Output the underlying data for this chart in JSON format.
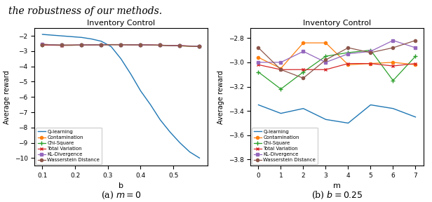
{
  "title": "Inventory Control",
  "ylabel": "Average reward",
  "top_text": "the robustness of our methods.",
  "plot1": {
    "xlabel": "b",
    "caption": "(a) $m=0$",
    "b_values": [
      0.1,
      0.13,
      0.16,
      0.19,
      0.22,
      0.25,
      0.28,
      0.31,
      0.34,
      0.37,
      0.4,
      0.43,
      0.46,
      0.49,
      0.52,
      0.55,
      0.58
    ],
    "q_learning": [
      -1.9,
      -1.95,
      -2.0,
      -2.05,
      -2.1,
      -2.2,
      -2.35,
      -2.7,
      -3.5,
      -4.5,
      -5.6,
      -6.5,
      -7.5,
      -8.3,
      -9.0,
      -9.6,
      -10.0
    ],
    "contamination": [
      -2.55,
      -2.58,
      -2.6,
      -2.6,
      -2.6,
      -2.58,
      -2.57,
      -2.57,
      -2.57,
      -2.58,
      -2.58,
      -2.6,
      -2.61,
      -2.63,
      -2.65,
      -2.67,
      -2.68
    ],
    "chi_square": [
      -2.58,
      -2.6,
      -2.61,
      -2.61,
      -2.6,
      -2.59,
      -2.58,
      -2.57,
      -2.57,
      -2.58,
      -2.58,
      -2.6,
      -2.61,
      -2.63,
      -2.65,
      -2.67,
      -2.68
    ],
    "total_variation": [
      -2.6,
      -2.61,
      -2.62,
      -2.61,
      -2.6,
      -2.59,
      -2.58,
      -2.57,
      -2.57,
      -2.58,
      -2.58,
      -2.59,
      -2.61,
      -2.62,
      -2.64,
      -2.66,
      -2.67
    ],
    "kl_divergence": [
      -2.55,
      -2.58,
      -2.6,
      -2.6,
      -2.59,
      -2.58,
      -2.57,
      -2.57,
      -2.57,
      -2.58,
      -2.58,
      -2.59,
      -2.61,
      -2.63,
      -2.64,
      -2.66,
      -2.67
    ],
    "wasserstein": [
      -2.57,
      -2.59,
      -2.61,
      -2.61,
      -2.6,
      -2.59,
      -2.58,
      -2.57,
      -2.57,
      -2.58,
      -2.58,
      -2.6,
      -2.61,
      -2.63,
      -2.65,
      -2.67,
      -2.68
    ],
    "ylim": [
      -10.5,
      -1.5
    ],
    "yticks": [
      -10,
      -9,
      -8,
      -7,
      -6,
      -5,
      -4,
      -3,
      -2
    ],
    "xticks": [
      0.1,
      0.2,
      0.3,
      0.4,
      0.5
    ],
    "xtick_labels": [
      "0.1",
      "0.2",
      "0.3",
      "0.4",
      "0.5"
    ]
  },
  "plot2": {
    "xlabel": "m",
    "caption": "(b) $b=0.25$",
    "m_values": [
      0,
      1,
      2,
      3,
      4,
      5,
      6,
      7
    ],
    "q_learning": [
      -3.35,
      -3.42,
      -3.38,
      -3.47,
      -3.5,
      -3.35,
      -3.38,
      -3.45
    ],
    "contamination": [
      -2.96,
      -3.05,
      -2.84,
      -2.84,
      -3.02,
      -3.01,
      -3.0,
      -3.02
    ],
    "chi_square": [
      -3.08,
      -3.22,
      -3.08,
      -2.95,
      -2.92,
      -2.9,
      -3.15,
      -2.95
    ],
    "total_variation": [
      -3.02,
      -3.06,
      -3.06,
      -3.06,
      -3.01,
      -3.01,
      -3.03,
      -3.01
    ],
    "kl_divergence": [
      -3.0,
      -3.0,
      -2.91,
      -3.0,
      -2.93,
      -2.91,
      -2.82,
      -2.88
    ],
    "wasserstein": [
      -2.88,
      -3.06,
      -3.13,
      -2.98,
      -2.88,
      -2.92,
      -2.88,
      -2.82
    ],
    "ylim": [
      -3.85,
      -2.72
    ],
    "yticks": [
      -3.8,
      -3.6,
      -3.4,
      -3.2,
      -3.0,
      -2.8
    ],
    "xticks": [
      0,
      1,
      2,
      3,
      4,
      5,
      6,
      7
    ]
  },
  "colors": {
    "q_learning": "#1f77b4",
    "contamination": "#ff7f0e",
    "chi_square": "#2ca02c",
    "total_variation": "#d62728",
    "kl_divergence": "#9467bd",
    "wasserstein": "#8c564b"
  },
  "legend_labels": [
    "Q-learning",
    "Contamination",
    "Chi-Square",
    "Total Variation",
    "KL-Divergence",
    "Wasserstein Distance"
  ],
  "marker_every1": 2,
  "figsize": [
    6.16,
    2.88
  ],
  "dpi": 100
}
